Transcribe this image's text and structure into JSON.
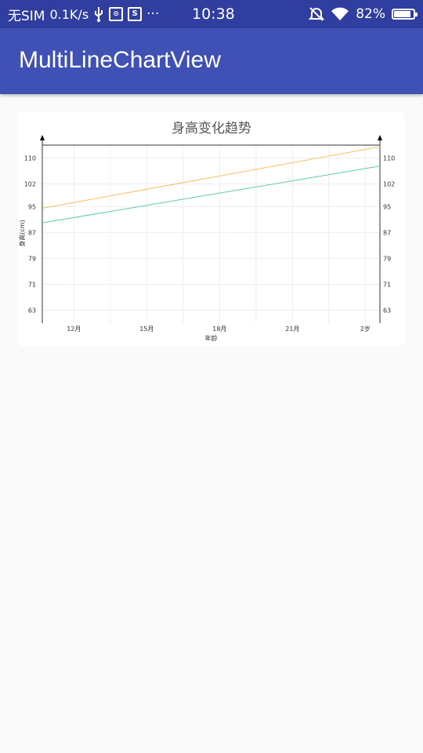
{
  "status_bar": {
    "carrier": "无SIM",
    "speed": "0.1K/s",
    "time": "10:38",
    "battery": "82%",
    "icons": [
      "usb-icon",
      "usb-debug-icon",
      "s-icon",
      "more-icon",
      "alarm-off-icon",
      "wifi-icon",
      "battery-charging-icon"
    ]
  },
  "app_bar": {
    "title": "MultiLineChartView"
  },
  "chart_data": {
    "type": "line",
    "title": "身高变化趋势",
    "xlabel": "年龄",
    "ylabel": "身高(cm)",
    "ylabel_right": "",
    "x_ticks": [
      "12月",
      "15月",
      "18月",
      "21月",
      "2岁"
    ],
    "x_tick_values": [
      12,
      15,
      18,
      21,
      24
    ],
    "xlim": [
      10.7,
      24.6
    ],
    "y_ticks": [
      63,
      71,
      79,
      87,
      95,
      102,
      110
    ],
    "ylim": [
      59,
      114
    ],
    "grid": true,
    "series": [
      {
        "color": "#f5c061",
        "x": [
          10.7,
          24.6
        ],
        "y": [
          94.5,
          113.5
        ]
      },
      {
        "color": "#5fc7b4",
        "x": [
          10.7,
          24.6
        ],
        "y": [
          90.0,
          107.5
        ]
      }
    ],
    "axis_color": "#333333",
    "grid_color": "#eeeeee"
  }
}
